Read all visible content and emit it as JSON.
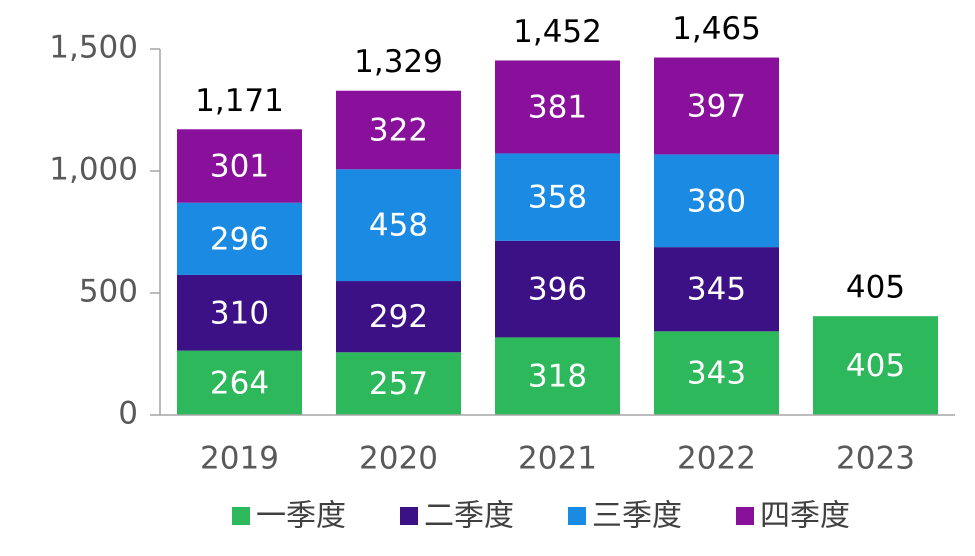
{
  "chart_data": {
    "type": "stacked_bar",
    "categories": [
      "2019",
      "2020",
      "2021",
      "2022",
      "2023"
    ],
    "series": [
      {
        "name": "一季度",
        "color": "#2eb85c",
        "values": [
          264,
          257,
          318,
          343,
          405
        ]
      },
      {
        "name": "二季度",
        "color": "#3c1185",
        "values": [
          310,
          292,
          396,
          345,
          null
        ]
      },
      {
        "name": "三季度",
        "color": "#1a8ae3",
        "values": [
          296,
          458,
          358,
          380,
          null
        ]
      },
      {
        "name": "四季度",
        "color": "#88109a",
        "values": [
          301,
          322,
          381,
          397,
          null
        ]
      }
    ],
    "totals": [
      1171,
      1329,
      1452,
      1465,
      405
    ],
    "total_labels": [
      "1,171",
      "1,329",
      "1,452",
      "1,465",
      "405"
    ],
    "ylim": [
      0,
      1500
    ],
    "yticks": [
      0,
      500,
      {
        "value": 1000,
        "label": "1,000"
      },
      {
        "value": 1500,
        "label": "1,500"
      }
    ],
    "grid": false,
    "legend": "bottom"
  }
}
